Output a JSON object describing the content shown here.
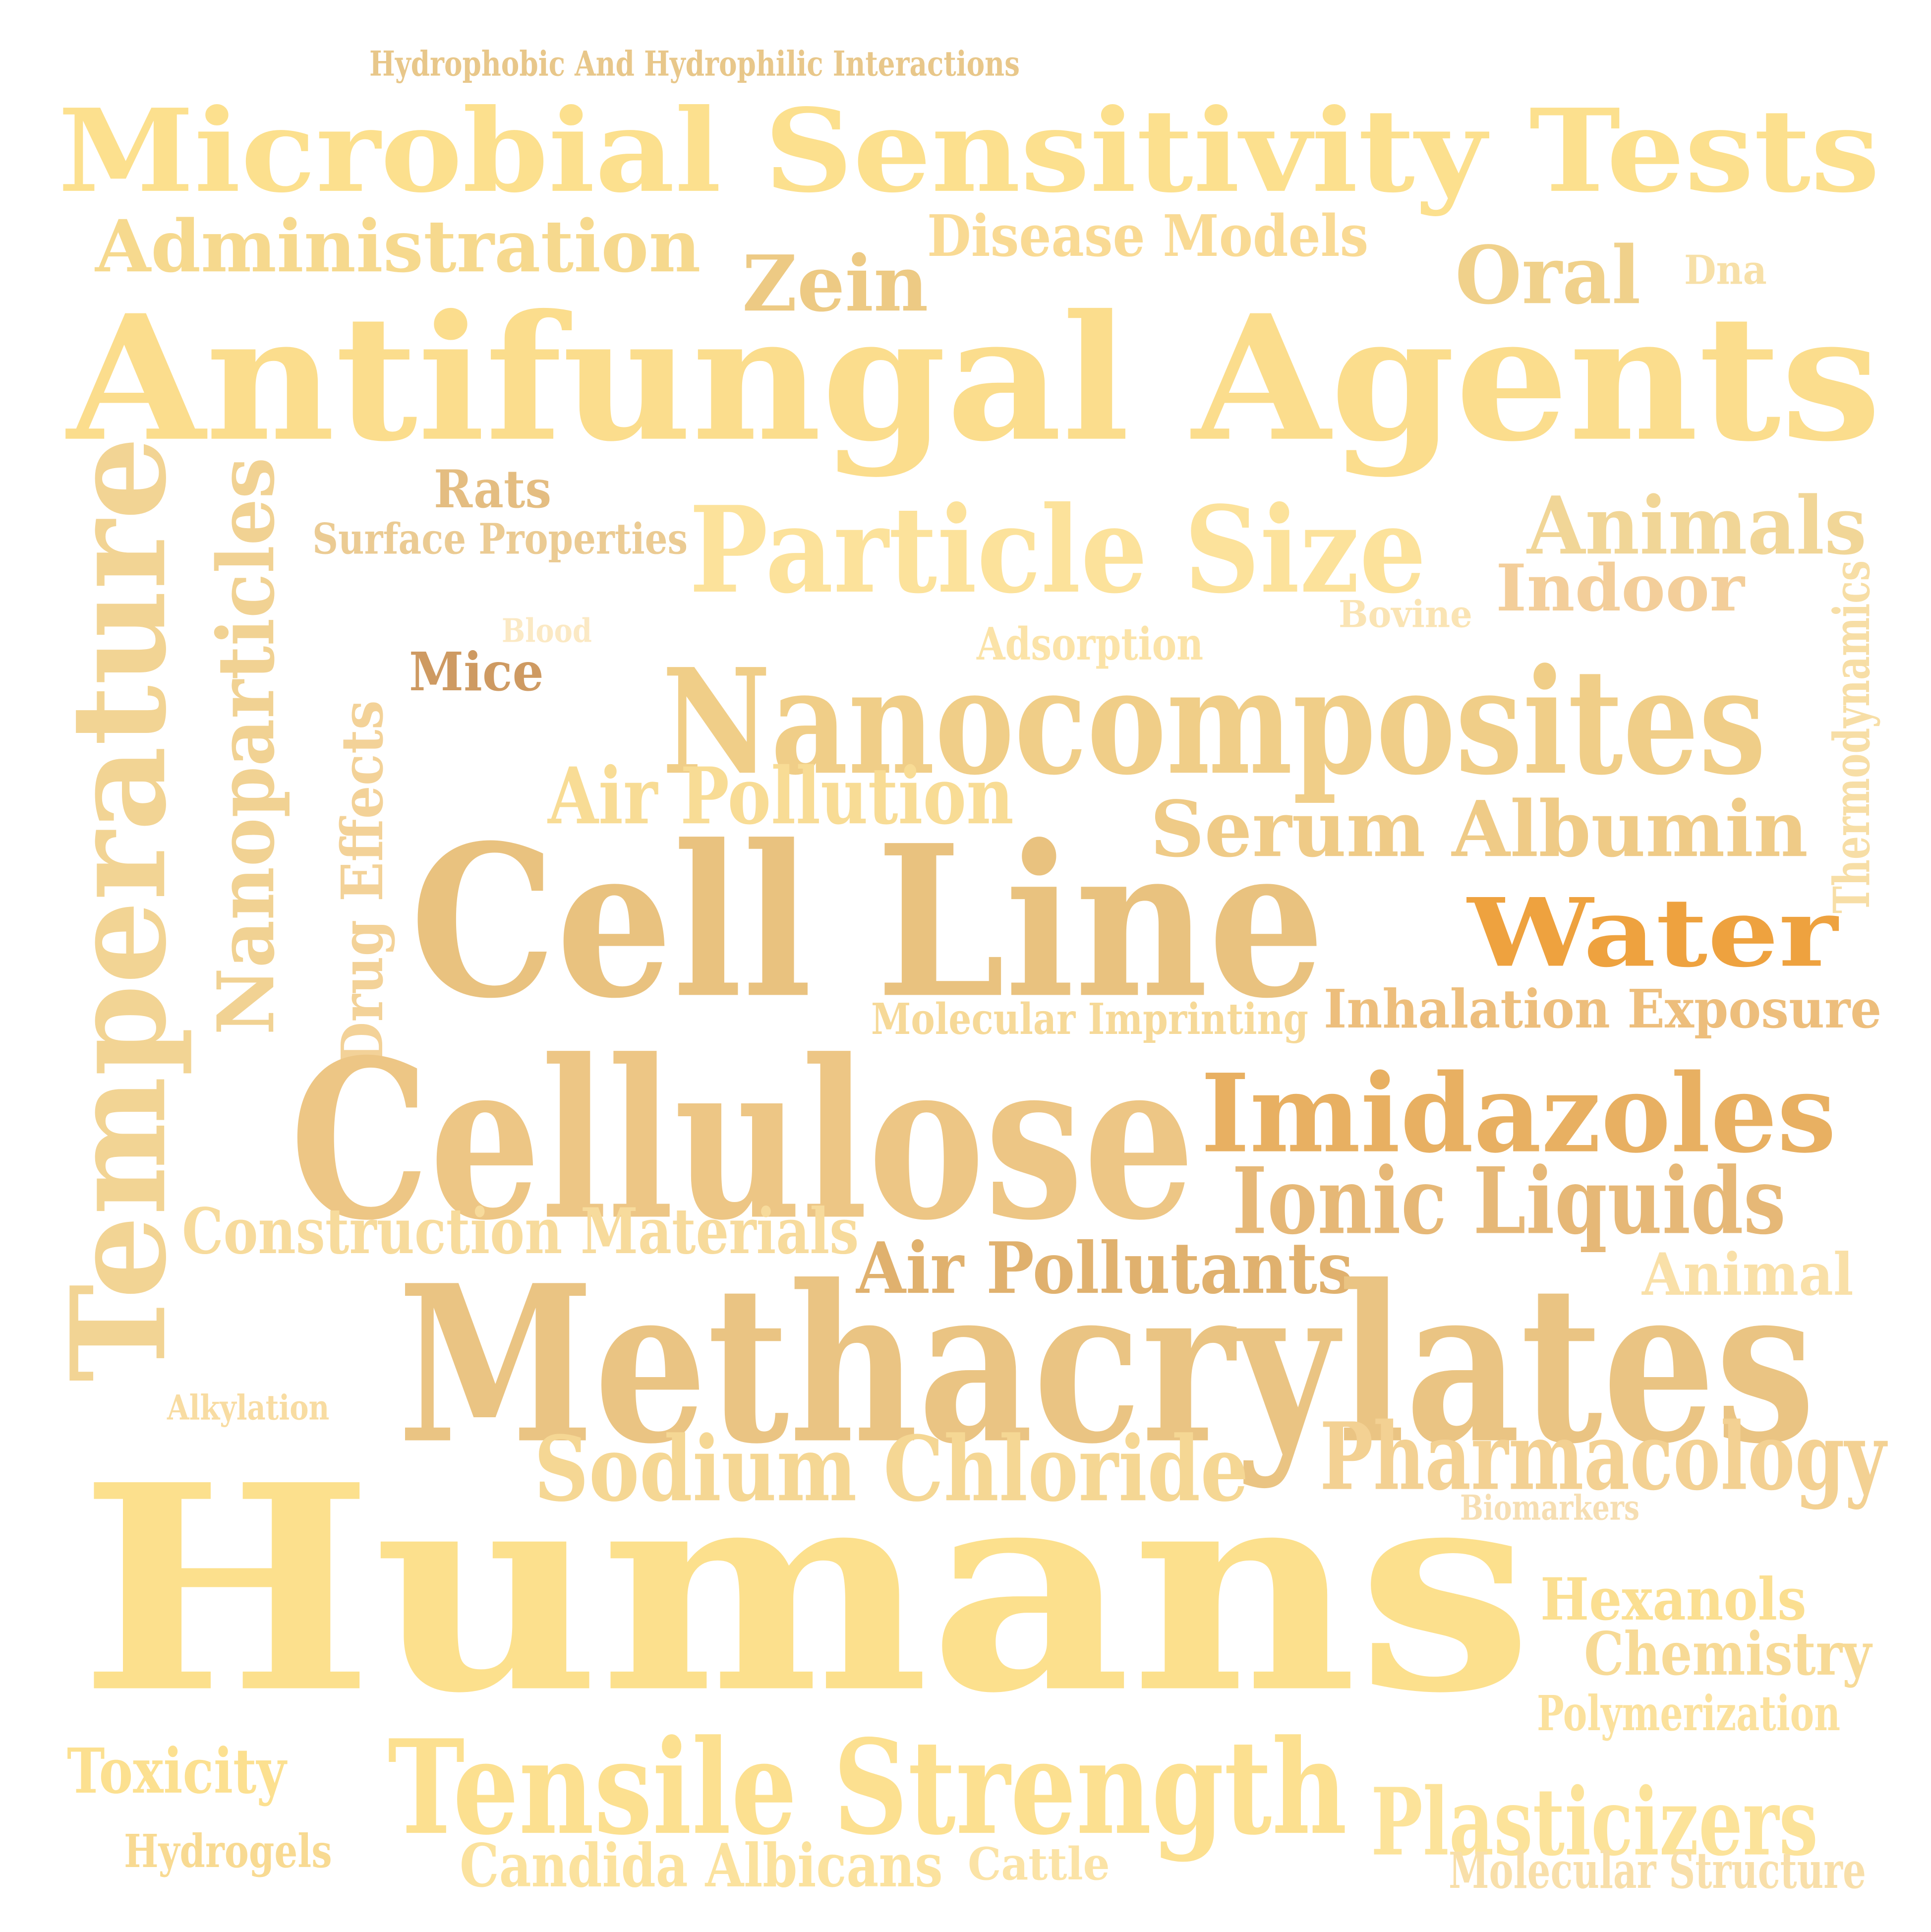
{
  "words": [
    {
      "id": "w1",
      "text": "Hydrophobic And Hydrophilic Interactions",
      "color": "#E8C78A"
    },
    {
      "id": "w2",
      "text": "Microbial Sensitivity Tests",
      "color": "#FCE08E"
    },
    {
      "id": "w3",
      "text": "Administration",
      "color": "#F6D98E"
    },
    {
      "id": "w4",
      "text": "Disease Models",
      "color": "#F9DA94"
    },
    {
      "id": "w5",
      "text": "Zein",
      "color": "#EDCA84"
    },
    {
      "id": "w6",
      "text": "Oral",
      "color": "#F0D18B"
    },
    {
      "id": "w7",
      "text": "Dna",
      "color": "#F7E0A8"
    },
    {
      "id": "w8",
      "text": "Antifungal Agents",
      "color": "#FBDD8D"
    },
    {
      "id": "w9",
      "text": "Rats",
      "color": "#E4BD81"
    },
    {
      "id": "w10",
      "text": "Surface Properties",
      "color": "#EBCB93"
    },
    {
      "id": "w11",
      "text": "Particle Size",
      "color": "#FCE29B"
    },
    {
      "id": "w12",
      "text": "Animals",
      "color": "#F1D697"
    },
    {
      "id": "w13",
      "text": "Indoor",
      "color": "#F3CE9A"
    },
    {
      "id": "w14",
      "text": "Bovine",
      "color": "#FAE4B4"
    },
    {
      "id": "w15",
      "text": "Blood",
      "color": "#FBE9C4"
    },
    {
      "id": "w16",
      "text": "Adsorption",
      "color": "#FBE3A8"
    },
    {
      "id": "w17",
      "text": "Mice",
      "color": "#CE9A62"
    },
    {
      "id": "w18",
      "text": "Thermodynamics",
      "color": "#F7DEA6"
    },
    {
      "id": "w19",
      "text": "Nanocomposites",
      "color": "#F0CE88"
    },
    {
      "id": "w20",
      "text": "Temperature",
      "color": "#F2D494"
    },
    {
      "id": "w21",
      "text": "Nanoparticles",
      "color": "#F1D293"
    },
    {
      "id": "w22",
      "text": "Drug Effects",
      "color": "#F3D298"
    },
    {
      "id": "w23",
      "text": "Air Pollution",
      "color": "#F8DC95"
    },
    {
      "id": "w24",
      "text": "Serum Albumin",
      "color": "#EFCB87"
    },
    {
      "id": "w25",
      "text": "Cell Line",
      "color": "#E9C27F"
    },
    {
      "id": "w26",
      "text": "Water",
      "color": "#EEA23F"
    },
    {
      "id": "w27",
      "text": "Molecular Imprinting",
      "color": "#F6D998"
    },
    {
      "id": "w28",
      "text": "Inhalation Exposure",
      "color": "#EDBE7C"
    },
    {
      "id": "w29",
      "text": "Cellulose",
      "color": "#EDC685"
    },
    {
      "id": "w30",
      "text": "Imidazoles",
      "color": "#E8B062"
    },
    {
      "id": "w31",
      "text": "Ionic Liquids",
      "color": "#E6B877"
    },
    {
      "id": "w32",
      "text": "Construction Materials",
      "color": "#F7DB9C"
    },
    {
      "id": "w33",
      "text": "Air Pollutants",
      "color": "#E0B16E"
    },
    {
      "id": "w34",
      "text": "Animal",
      "color": "#F9E0A8"
    },
    {
      "id": "w35",
      "text": "Methacrylates",
      "color": "#EAC483"
    },
    {
      "id": "w36",
      "text": "Alkylation",
      "color": "#F8DCA2"
    },
    {
      "id": "w37",
      "text": "Sodium Chloride",
      "color": "#F5D794"
    },
    {
      "id": "w38",
      "text": "Pharmacology",
      "color": "#F3D193"
    },
    {
      "id": "w39",
      "text": "Biomarkers",
      "color": "#F6DEB2"
    },
    {
      "id": "w40",
      "text": "Humans",
      "color": "#FCE08D"
    },
    {
      "id": "w41",
      "text": "Hexanols",
      "color": "#FBDF91"
    },
    {
      "id": "w42",
      "text": "Chemistry",
      "color": "#F7DA96"
    },
    {
      "id": "w43",
      "text": "Polymerization",
      "color": "#FBE19D"
    },
    {
      "id": "w44",
      "text": "Toxicity",
      "color": "#FCE090"
    },
    {
      "id": "w45",
      "text": "Tensile Strength",
      "color": "#FCE090"
    },
    {
      "id": "w46",
      "text": "Plasticizers",
      "color": "#FCE39A"
    },
    {
      "id": "w47",
      "text": "Hydrogels",
      "color": "#F8DA92"
    },
    {
      "id": "w48",
      "text": "Candida Albicans",
      "color": "#FBE29E"
    },
    {
      "id": "w49",
      "text": "Cattle",
      "color": "#FBE3A6"
    },
    {
      "id": "w50",
      "text": "Molecular Structure",
      "color": "#F8DFAA"
    }
  ]
}
